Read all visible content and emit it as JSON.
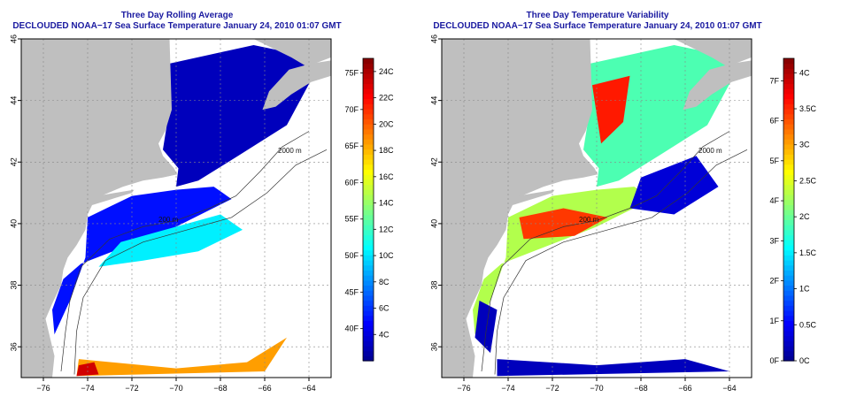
{
  "panels": [
    {
      "title": "Three Day Rolling Average",
      "subtitle": "DECLOUDED NOAA−17 Sea Surface Temperature January 24, 2010 01:07 GMT",
      "x_ticks": [
        "−76",
        "−74",
        "−72",
        "−70",
        "−68",
        "−66",
        "−64"
      ],
      "y_ticks": [
        "36",
        "38",
        "40",
        "42",
        "44",
        "46"
      ],
      "contour_labels": [
        "200 m",
        "2000 m"
      ],
      "colorbar_left_labels": [
        "40F",
        "45F",
        "50F",
        "55F",
        "60F",
        "65F",
        "70F",
        "75F"
      ],
      "colorbar_right_labels": [
        "4C",
        "6C",
        "8C",
        "10C",
        "12C",
        "14C",
        "16C",
        "18C",
        "20C",
        "22C",
        "24C"
      ],
      "colorbar_range": [
        2,
        25
      ],
      "colorbar_fahrenheit_values": [
        40,
        45,
        50,
        55,
        60,
        65,
        70,
        75
      ],
      "colorbar_celsius_values": [
        4,
        6,
        8,
        10,
        12,
        14,
        16,
        18,
        20,
        22,
        24
      ]
    },
    {
      "title": "Three Day Temperature Variability",
      "subtitle": "DECLOUDED NOAA−17 Sea Surface Temperature January 24, 2010 01:07 GMT",
      "x_ticks": [
        "−76",
        "−74",
        "−72",
        "−70",
        "−68",
        "−66",
        "−64"
      ],
      "y_ticks": [
        "36",
        "38",
        "40",
        "42",
        "44",
        "46"
      ],
      "contour_labels": [
        "200 m",
        "2000 m"
      ],
      "colorbar_left_labels": [
        "0F",
        "1F",
        "2F",
        "3F",
        "4F",
        "5F",
        "6F",
        "7F"
      ],
      "colorbar_right_labels": [
        "0C",
        "0.5C",
        "1C",
        "1.5C",
        "2C",
        "2.5C",
        "3C",
        "3.5C",
        "4C"
      ],
      "colorbar_range": [
        0,
        4.2
      ],
      "colorbar_fahrenheit_values": [
        0,
        1,
        2,
        3,
        4,
        5,
        6,
        7
      ],
      "colorbar_celsius_values": [
        0,
        0.5,
        1,
        1.5,
        2,
        2.5,
        3,
        3.5,
        4
      ]
    }
  ],
  "colors": {
    "land": "#bfbfbf",
    "ocean_nodata": "#ffffff",
    "title": "#1a1aa0",
    "colormap": [
      "#00008f",
      "#0000ff",
      "#007fff",
      "#00ffff",
      "#7fff7f",
      "#ffff00",
      "#ff7f00",
      "#ff0000",
      "#7f0000"
    ]
  }
}
